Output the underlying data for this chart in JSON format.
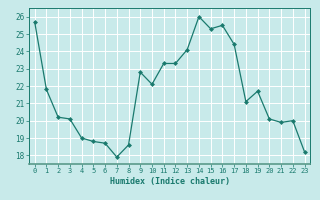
{
  "x": [
    0,
    1,
    2,
    3,
    4,
    5,
    6,
    7,
    8,
    9,
    10,
    11,
    12,
    13,
    14,
    15,
    16,
    17,
    18,
    19,
    20,
    21,
    22,
    23
  ],
  "y": [
    25.7,
    21.8,
    20.2,
    20.1,
    19.0,
    18.8,
    18.7,
    17.9,
    18.6,
    22.8,
    22.1,
    23.3,
    23.3,
    24.1,
    26.0,
    25.3,
    25.5,
    24.4,
    21.1,
    21.7,
    20.1,
    19.9,
    20.0,
    18.2
  ],
  "xlabel": "Humidex (Indice chaleur)",
  "ylim": [
    17.5,
    26.5
  ],
  "xlim": [
    -0.5,
    23.5
  ],
  "yticks": [
    18,
    19,
    20,
    21,
    22,
    23,
    24,
    25,
    26
  ],
  "xticks": [
    0,
    1,
    2,
    3,
    4,
    5,
    6,
    7,
    8,
    9,
    10,
    11,
    12,
    13,
    14,
    15,
    16,
    17,
    18,
    19,
    20,
    21,
    22,
    23
  ],
  "line_color": "#1a7a6e",
  "marker_color": "#1a7a6e",
  "bg_color": "#c8eaea",
  "grid_color": "#ffffff",
  "text_color": "#1a7a6e",
  "axis_bottom_color": "#5a9a8a"
}
